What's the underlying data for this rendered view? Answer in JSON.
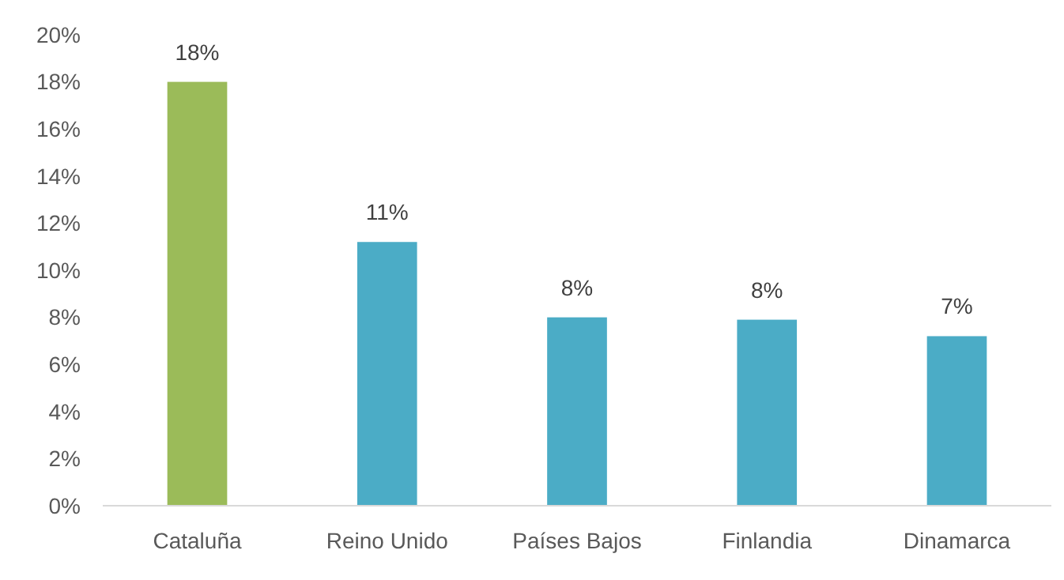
{
  "chart_data": {
    "type": "bar",
    "categories": [
      "Cataluña",
      "Reino Unido",
      "Países Bajos",
      "Finlandia",
      "Dinamarca"
    ],
    "values": [
      18,
      11.2,
      8,
      7.9,
      7.2
    ],
    "colors": [
      "#9bbb59",
      "#4bacc6",
      "#4bacc6",
      "#4bacc6",
      "#4bacc6"
    ],
    "value_labels": [
      "18%",
      "11%",
      "8%",
      "8%",
      "7%"
    ],
    "ylim": [
      0,
      20
    ],
    "yticks": [
      {
        "value": 0,
        "label": "0%"
      },
      {
        "value": 2,
        "label": "2%"
      },
      {
        "value": 4,
        "label": "4%"
      },
      {
        "value": 6,
        "label": "6%"
      },
      {
        "value": 8,
        "label": "8%"
      },
      {
        "value": 10,
        "label": "10%"
      },
      {
        "value": 12,
        "label": "12%"
      },
      {
        "value": 14,
        "label": "14%"
      },
      {
        "value": 16,
        "label": "16%"
      },
      {
        "value": 18,
        "label": "18%"
      },
      {
        "value": 20,
        "label": "20%"
      }
    ]
  }
}
